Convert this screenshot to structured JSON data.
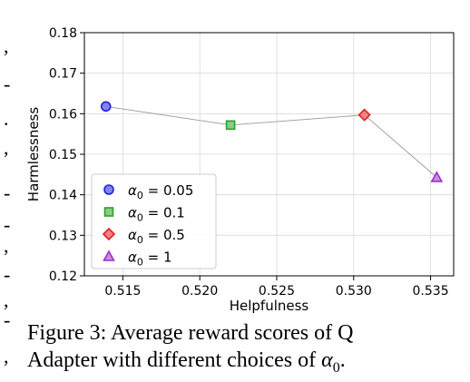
{
  "chart_data": {
    "type": "scatter",
    "xlabel": "Helpfulness",
    "ylabel": "Harmlessness",
    "xlim": [
      0.5125,
      0.5365
    ],
    "ylim": [
      0.12,
      0.18
    ],
    "xticks": [
      "0.515",
      "0.520",
      "0.525",
      "0.530",
      "0.535"
    ],
    "xtick_values": [
      0.515,
      0.52,
      0.525,
      0.53,
      0.535
    ],
    "yticks": [
      "0.12",
      "0.13",
      "0.14",
      "0.15",
      "0.16",
      "0.17",
      "0.18"
    ],
    "ytick_values": [
      0.12,
      0.13,
      0.14,
      0.15,
      0.16,
      0.17,
      0.18
    ],
    "grid": true,
    "legend_position": "lower-left",
    "connecting_line": true,
    "series": [
      {
        "name": "α0 = 0.05",
        "label_base": "α",
        "label_sub": "0",
        "label_value": " = 0.05",
        "marker": "circle",
        "color": "#1f1fe0",
        "x": 0.5139,
        "y": 0.1618
      },
      {
        "name": "α0 = 0.1",
        "label_base": "α",
        "label_sub": "0",
        "label_value": " = 0.1",
        "marker": "square",
        "color": "#2ca02c",
        "x": 0.522,
        "y": 0.1572
      },
      {
        "name": "α0 = 0.5",
        "label_base": "α",
        "label_sub": "0",
        "label_value": " = 0.5",
        "marker": "diamond",
        "color": "#e02020",
        "x": 0.5307,
        "y": 0.1597
      },
      {
        "name": "α0 = 1",
        "label_base": "α",
        "label_sub": "0",
        "label_value": " = 1",
        "marker": "triangle",
        "color": "#9b30c8",
        "x": 0.5354,
        "y": 0.1443
      }
    ]
  },
  "caption": {
    "line1": "Figure 3:  Average reward scores of Q",
    "line2_prefix": "Adapter with different choices of ",
    "line2_symbol": "α",
    "line2_sub": "0",
    "line2_suffix": "."
  },
  "left_marks": [
    ",",
    "-",
    ".",
    ",",
    "-",
    "-",
    ",",
    "-",
    ",",
    "-",
    ","
  ]
}
